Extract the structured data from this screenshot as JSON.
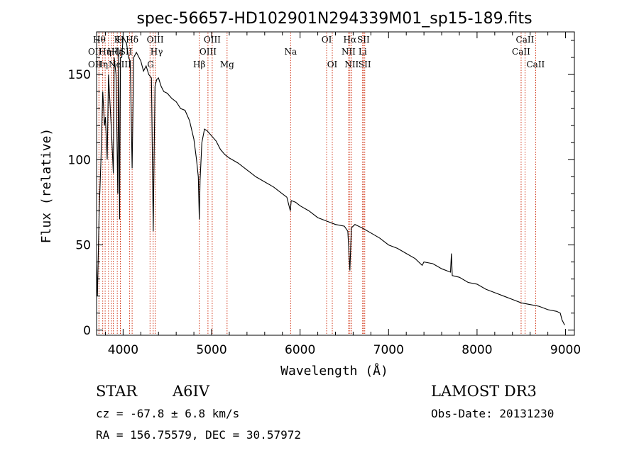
{
  "chart_data": {
    "type": "line",
    "title": "spec-56657-HD102901N294339M01_sp15-189.fits",
    "xlabel": "Wavelength (Å)",
    "ylabel": "Flux (relative)",
    "xlim": [
      3700,
      9100
    ],
    "ylim": [
      -3,
      175
    ],
    "xticks": [
      4000,
      5000,
      6000,
      7000,
      8000,
      9000
    ],
    "yticks": [
      0,
      50,
      100,
      150
    ],
    "series": [
      {
        "name": "flux",
        "x": [
          3700,
          3710,
          3730,
          3750,
          3770,
          3790,
          3800,
          3820,
          3835,
          3850,
          3870,
          3889,
          3900,
          3920,
          3940,
          3950,
          3960,
          3970,
          3985,
          4000,
          4020,
          4040,
          4060,
          4080,
          4102,
          4120,
          4150,
          4180,
          4200,
          4230,
          4260,
          4290,
          4320,
          4340,
          4360,
          4380,
          4400,
          4430,
          4460,
          4500,
          4550,
          4600,
          4650,
          4700,
          4750,
          4800,
          4830,
          4850,
          4861,
          4870,
          4890,
          4920,
          4950,
          5000,
          5050,
          5100,
          5150,
          5200,
          5300,
          5400,
          5450,
          5500,
          5600,
          5700,
          5800,
          5850,
          5890,
          5900,
          5950,
          6000,
          6100,
          6200,
          6300,
          6400,
          6500,
          6540,
          6563,
          6580,
          6620,
          6700,
          6800,
          6900,
          7000,
          7100,
          7200,
          7300,
          7380,
          7400,
          7500,
          7600,
          7700,
          7710,
          7720,
          7800,
          7900,
          8000,
          8100,
          8200,
          8300,
          8400,
          8500,
          8600,
          8700,
          8800,
          8900,
          8940,
          8960,
          8990
        ],
        "y": [
          40,
          20,
          70,
          100,
          140,
          120,
          125,
          100,
          150,
          135,
          115,
          92,
          160,
          150,
          80,
          165,
          65,
          160,
          160,
          172,
          170,
          168,
          160,
          158,
          95,
          160,
          163,
          160,
          158,
          152,
          155,
          150,
          148,
          58,
          143,
          147,
          148,
          143,
          140,
          139,
          136,
          134,
          130,
          129,
          123,
          112,
          100,
          90,
          65,
          88,
          110,
          118,
          117,
          114,
          111,
          106,
          103,
          101,
          98,
          94,
          92,
          90,
          87,
          84,
          80,
          78,
          70,
          76,
          75,
          73,
          70,
          66,
          64,
          62,
          61,
          58,
          35,
          60,
          62,
          60,
          57,
          54,
          50,
          48,
          45,
          42,
          38,
          40,
          39,
          36,
          34,
          45,
          32,
          31,
          28,
          27,
          24,
          22,
          20,
          18,
          16,
          15,
          14,
          12,
          11,
          10,
          6,
          3
        ]
      }
    ],
    "line_markers": [
      {
        "wl": 3727,
        "label": "OII",
        "row": 1,
        "side": "left"
      },
      {
        "wl": 3727,
        "label": "OII",
        "row": 2,
        "side": "left"
      },
      {
        "wl": 3770,
        "label": "Hθ",
        "row": 0,
        "side": "left"
      },
      {
        "wl": 3797,
        "label": "Hη",
        "row": 2,
        "side": "left"
      },
      {
        "wl": 3835,
        "label": "Hη",
        "row": 1,
        "side": "left"
      },
      {
        "wl": 3869,
        "label": "NeIII",
        "row": 2,
        "side": "right"
      },
      {
        "wl": 3889,
        "label": "Hζ",
        "row": 1,
        "side": "center"
      },
      {
        "wl": 3934,
        "label": "K",
        "row": 0,
        "side": "center"
      },
      {
        "wl": 3968,
        "label": "H",
        "row": 0,
        "side": "center"
      },
      {
        "wl": 3970,
        "label": "Hε",
        "row": 1,
        "side": "left"
      },
      {
        "wl": 4072,
        "label": "SII",
        "row": 1,
        "side": "left"
      },
      {
        "wl": 4102,
        "label": "Hδ",
        "row": 0,
        "side": "center"
      },
      {
        "wl": 4304,
        "label": "G",
        "row": 2,
        "side": "right"
      },
      {
        "wl": 4340,
        "label": "Hγ",
        "row": 1,
        "side": "right"
      },
      {
        "wl": 4363,
        "label": "OIII",
        "row": 0,
        "side": "center"
      },
      {
        "wl": 4861,
        "label": "Hβ",
        "row": 2,
        "side": "center"
      },
      {
        "wl": 4959,
        "label": "OIII",
        "row": 1,
        "side": "center"
      },
      {
        "wl": 5007,
        "label": "OIII",
        "row": 0,
        "side": "center"
      },
      {
        "wl": 5175,
        "label": "Mg",
        "row": 2,
        "side": "center"
      },
      {
        "wl": 5893,
        "label": "Na",
        "row": 1,
        "side": "center"
      },
      {
        "wl": 6300,
        "label": "OI",
        "row": 0,
        "side": "center"
      },
      {
        "wl": 6364,
        "label": "OI",
        "row": 2,
        "side": "center"
      },
      {
        "wl": 6548,
        "label": "NII",
        "row": 1,
        "side": "center"
      },
      {
        "wl": 6563,
        "label": "Hα",
        "row": 0,
        "side": "center"
      },
      {
        "wl": 6583,
        "label": "NII",
        "row": 2,
        "side": "center"
      },
      {
        "wl": 6707,
        "label": "Li",
        "row": 1,
        "side": "center"
      },
      {
        "wl": 6716,
        "label": "SII",
        "row": 0,
        "side": "center"
      },
      {
        "wl": 6731,
        "label": "SII",
        "row": 2,
        "side": "center"
      },
      {
        "wl": 8498,
        "label": "CaII",
        "row": 1,
        "side": "center"
      },
      {
        "wl": 8542,
        "label": "CaII",
        "row": 0,
        "side": "center"
      },
      {
        "wl": 8662,
        "label": "CaII",
        "row": 2,
        "side": "center"
      }
    ]
  },
  "info": {
    "object_class": "STAR",
    "subclass": "A6IV",
    "survey": "LAMOST DR3",
    "cz": "cz = -67.8 ± 6.8 km/s",
    "obs_date": "Obs-Date: 20131230",
    "coords": "RA = 156.75579, DEC =  30.57972"
  },
  "colors": {
    "marker": "#cc2200",
    "axis": "#000000"
  }
}
